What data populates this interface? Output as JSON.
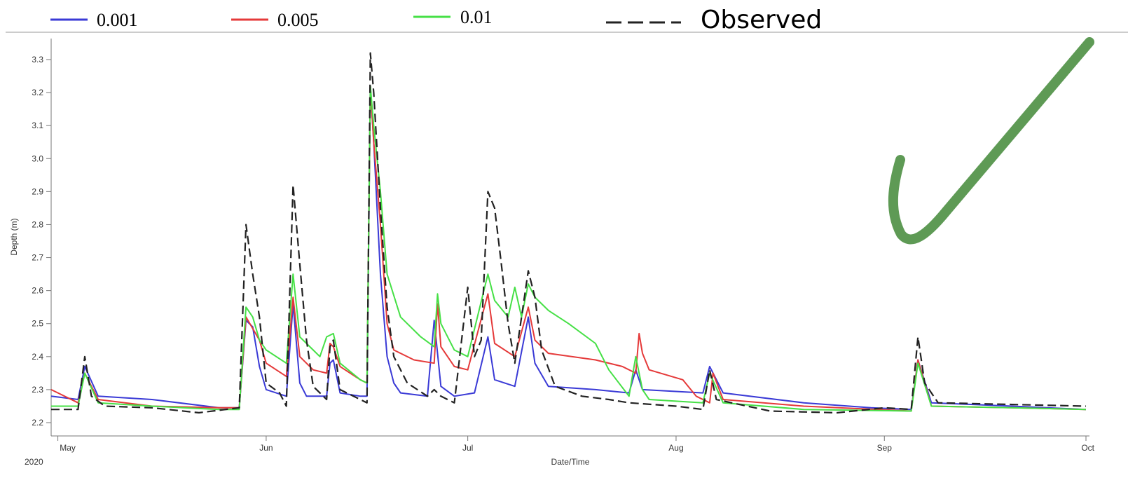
{
  "chart_data": {
    "type": "line",
    "xlabel": "Date/Time",
    "ylabel": "Depth (m)",
    "ylim": [
      2.17,
      3.36
    ],
    "xlim": [
      "2020-04-30",
      "2020-10-01"
    ],
    "y_ticks": [
      "2.2",
      "2.3",
      "2.4",
      "2.5",
      "2.6",
      "2.7",
      "2.8",
      "2.9",
      "3.0",
      "3.1",
      "3.2",
      "3.3"
    ],
    "x_ticks": [
      {
        "date": "2020-05-01",
        "label": "May"
      },
      {
        "date": "2020-06-01",
        "label": "Jun"
      },
      {
        "date": "2020-07-01",
        "label": "Jul"
      },
      {
        "date": "2020-08-01",
        "label": "Aug"
      },
      {
        "date": "2020-09-01",
        "label": "Sep"
      },
      {
        "date": "2020-10-01",
        "label": "Oct"
      }
    ],
    "year_label": "2020",
    "grid": false,
    "legend_position": "top",
    "series": [
      {
        "name": "0.001",
        "color": "#3a3ad6",
        "dash": "solid",
        "points": [
          [
            "2020-04-30",
            2.28
          ],
          [
            "2020-05-04",
            2.27
          ],
          [
            "2020-05-05",
            2.37
          ],
          [
            "2020-05-07",
            2.28
          ],
          [
            "2020-05-15",
            2.27
          ],
          [
            "2020-05-25",
            2.245
          ],
          [
            "2020-05-28",
            2.245
          ],
          [
            "2020-05-29",
            2.51
          ],
          [
            "2020-05-30",
            2.49
          ],
          [
            "2020-05-31",
            2.37
          ],
          [
            "2020-06-01",
            2.3
          ],
          [
            "2020-06-04",
            2.28
          ],
          [
            "2020-06-05",
            2.56
          ],
          [
            "2020-06-06",
            2.32
          ],
          [
            "2020-06-07",
            2.28
          ],
          [
            "2020-06-10",
            2.28
          ],
          [
            "2020-06-10T12:00",
            2.38
          ],
          [
            "2020-06-11",
            2.39
          ],
          [
            "2020-06-12",
            2.29
          ],
          [
            "2020-06-15",
            2.28
          ],
          [
            "2020-06-16",
            2.28
          ],
          [
            "2020-06-16T12:00",
            3.22
          ],
          [
            "2020-06-17",
            3.05
          ],
          [
            "2020-06-18",
            2.65
          ],
          [
            "2020-06-19",
            2.4
          ],
          [
            "2020-06-20",
            2.32
          ],
          [
            "2020-06-21",
            2.29
          ],
          [
            "2020-06-25",
            2.28
          ],
          [
            "2020-06-26",
            2.51
          ],
          [
            "2020-06-27",
            2.31
          ],
          [
            "2020-06-29",
            2.28
          ],
          [
            "2020-07-02",
            2.29
          ],
          [
            "2020-07-04",
            2.46
          ],
          [
            "2020-07-05",
            2.33
          ],
          [
            "2020-07-08",
            2.31
          ],
          [
            "2020-07-10",
            2.52
          ],
          [
            "2020-07-11",
            2.38
          ],
          [
            "2020-07-13",
            2.31
          ],
          [
            "2020-07-20",
            2.3
          ],
          [
            "2020-07-25",
            2.29
          ],
          [
            "2020-07-26",
            2.36
          ],
          [
            "2020-07-27",
            2.3
          ],
          [
            "2020-08-05",
            2.29
          ],
          [
            "2020-08-06",
            2.37
          ],
          [
            "2020-08-08",
            2.29
          ],
          [
            "2020-08-20",
            2.26
          ],
          [
            "2020-08-30",
            2.245
          ],
          [
            "2020-09-05",
            2.24
          ],
          [
            "2020-09-06",
            2.39
          ],
          [
            "2020-09-08",
            2.26
          ],
          [
            "2020-09-20",
            2.25
          ],
          [
            "2020-10-01",
            2.24
          ]
        ]
      },
      {
        "name": "0.005",
        "color": "#e53a3a",
        "dash": "solid",
        "points": [
          [
            "2020-04-30",
            2.3
          ],
          [
            "2020-05-04",
            2.26
          ],
          [
            "2020-05-05",
            2.35
          ],
          [
            "2020-05-07",
            2.27
          ],
          [
            "2020-05-15",
            2.25
          ],
          [
            "2020-05-25",
            2.245
          ],
          [
            "2020-05-28",
            2.245
          ],
          [
            "2020-05-29",
            2.52
          ],
          [
            "2020-05-31",
            2.45
          ],
          [
            "2020-06-01",
            2.38
          ],
          [
            "2020-06-04",
            2.34
          ],
          [
            "2020-06-05",
            2.58
          ],
          [
            "2020-06-06",
            2.4
          ],
          [
            "2020-06-08",
            2.36
          ],
          [
            "2020-06-10",
            2.35
          ],
          [
            "2020-06-10T12:00",
            2.44
          ],
          [
            "2020-06-11",
            2.43
          ],
          [
            "2020-06-12",
            2.37
          ],
          [
            "2020-06-15",
            2.33
          ],
          [
            "2020-06-16",
            2.32
          ],
          [
            "2020-06-16T12:00",
            3.22
          ],
          [
            "2020-06-17",
            3.05
          ],
          [
            "2020-06-18",
            2.8
          ],
          [
            "2020-06-19",
            2.5
          ],
          [
            "2020-06-20",
            2.42
          ],
          [
            "2020-06-23",
            2.39
          ],
          [
            "2020-06-26",
            2.38
          ],
          [
            "2020-06-26T12:00",
            2.56
          ],
          [
            "2020-06-27",
            2.43
          ],
          [
            "2020-06-29",
            2.37
          ],
          [
            "2020-07-01",
            2.36
          ],
          [
            "2020-07-04",
            2.59
          ],
          [
            "2020-07-05",
            2.44
          ],
          [
            "2020-07-08",
            2.4
          ],
          [
            "2020-07-10",
            2.55
          ],
          [
            "2020-07-11",
            2.45
          ],
          [
            "2020-07-13",
            2.41
          ],
          [
            "2020-07-20",
            2.39
          ],
          [
            "2020-07-24",
            2.37
          ],
          [
            "2020-07-26",
            2.35
          ],
          [
            "2020-07-26T12:00",
            2.47
          ],
          [
            "2020-07-27",
            2.41
          ],
          [
            "2020-07-28",
            2.36
          ],
          [
            "2020-08-02",
            2.33
          ],
          [
            "2020-08-04",
            2.28
          ],
          [
            "2020-08-06",
            2.26
          ],
          [
            "2020-08-06T12:00",
            2.35
          ],
          [
            "2020-08-08",
            2.27
          ],
          [
            "2020-08-20",
            2.25
          ],
          [
            "2020-09-05",
            2.235
          ],
          [
            "2020-09-06",
            2.39
          ],
          [
            "2020-09-08",
            2.25
          ],
          [
            "2020-09-20",
            2.245
          ],
          [
            "2020-10-01",
            2.24
          ]
        ]
      },
      {
        "name": "0.01",
        "color": "#46e046",
        "dash": "solid",
        "points": [
          [
            "2020-04-30",
            2.25
          ],
          [
            "2020-05-04",
            2.25
          ],
          [
            "2020-05-05",
            2.35
          ],
          [
            "2020-05-07",
            2.26
          ],
          [
            "2020-05-15",
            2.25
          ],
          [
            "2020-05-25",
            2.24
          ],
          [
            "2020-05-28",
            2.24
          ],
          [
            "2020-05-29",
            2.55
          ],
          [
            "2020-05-30",
            2.52
          ],
          [
            "2020-05-31",
            2.45
          ],
          [
            "2020-06-01",
            2.42
          ],
          [
            "2020-06-04",
            2.38
          ],
          [
            "2020-06-05",
            2.65
          ],
          [
            "2020-06-06",
            2.46
          ],
          [
            "2020-06-08",
            2.42
          ],
          [
            "2020-06-09",
            2.4
          ],
          [
            "2020-06-10",
            2.46
          ],
          [
            "2020-06-11",
            2.47
          ],
          [
            "2020-06-12",
            2.38
          ],
          [
            "2020-06-15",
            2.33
          ],
          [
            "2020-06-16",
            2.32
          ],
          [
            "2020-06-16T12:00",
            3.22
          ],
          [
            "2020-06-17",
            3.1
          ],
          [
            "2020-06-18",
            2.9
          ],
          [
            "2020-06-19",
            2.65
          ],
          [
            "2020-06-21",
            2.52
          ],
          [
            "2020-06-24",
            2.46
          ],
          [
            "2020-06-26",
            2.43
          ],
          [
            "2020-06-26T12:00",
            2.59
          ],
          [
            "2020-06-27",
            2.5
          ],
          [
            "2020-06-29",
            2.42
          ],
          [
            "2020-07-01",
            2.4
          ],
          [
            "2020-07-04",
            2.65
          ],
          [
            "2020-07-05",
            2.57
          ],
          [
            "2020-07-07",
            2.52
          ],
          [
            "2020-07-08",
            2.61
          ],
          [
            "2020-07-09",
            2.52
          ],
          [
            "2020-07-10",
            2.62
          ],
          [
            "2020-07-11",
            2.58
          ],
          [
            "2020-07-13",
            2.54
          ],
          [
            "2020-07-16",
            2.5
          ],
          [
            "2020-07-20",
            2.44
          ],
          [
            "2020-07-22",
            2.36
          ],
          [
            "2020-07-25",
            2.28
          ],
          [
            "2020-07-26",
            2.4
          ],
          [
            "2020-07-27",
            2.3
          ],
          [
            "2020-07-28",
            2.27
          ],
          [
            "2020-08-05",
            2.26
          ],
          [
            "2020-08-06",
            2.35
          ],
          [
            "2020-08-08",
            2.26
          ],
          [
            "2020-08-20",
            2.24
          ],
          [
            "2020-09-05",
            2.235
          ],
          [
            "2020-09-06",
            2.38
          ],
          [
            "2020-09-08",
            2.25
          ],
          [
            "2020-09-20",
            2.245
          ],
          [
            "2020-10-01",
            2.24
          ]
        ]
      },
      {
        "name": "Observed",
        "color": "#222222",
        "dash": "dashed",
        "points": [
          [
            "2020-04-30",
            2.24
          ],
          [
            "2020-05-04",
            2.24
          ],
          [
            "2020-05-05",
            2.4
          ],
          [
            "2020-05-06",
            2.28
          ],
          [
            "2020-05-08",
            2.25
          ],
          [
            "2020-05-15",
            2.245
          ],
          [
            "2020-05-22",
            2.23
          ],
          [
            "2020-05-28",
            2.245
          ],
          [
            "2020-05-29",
            2.8
          ],
          [
            "2020-05-30",
            2.65
          ],
          [
            "2020-05-31",
            2.52
          ],
          [
            "2020-06-01",
            2.32
          ],
          [
            "2020-06-03",
            2.29
          ],
          [
            "2020-06-04",
            2.25
          ],
          [
            "2020-06-05",
            2.92
          ],
          [
            "2020-06-06",
            2.68
          ],
          [
            "2020-06-07",
            2.45
          ],
          [
            "2020-06-08",
            2.31
          ],
          [
            "2020-06-10",
            2.27
          ],
          [
            "2020-06-10T12:00",
            2.43
          ],
          [
            "2020-06-11",
            2.45
          ],
          [
            "2020-06-12",
            2.3
          ],
          [
            "2020-06-15",
            2.27
          ],
          [
            "2020-06-16",
            2.26
          ],
          [
            "2020-06-16T12:00",
            3.32
          ],
          [
            "2020-06-17",
            3.2
          ],
          [
            "2020-06-18",
            2.85
          ],
          [
            "2020-06-19",
            2.55
          ],
          [
            "2020-06-20",
            2.4
          ],
          [
            "2020-06-22",
            2.32
          ],
          [
            "2020-06-25",
            2.28
          ],
          [
            "2020-06-26",
            2.3
          ],
          [
            "2020-06-27",
            2.28
          ],
          [
            "2020-06-29",
            2.26
          ],
          [
            "2020-07-01",
            2.61
          ],
          [
            "2020-07-02",
            2.4
          ],
          [
            "2020-07-03",
            2.45
          ],
          [
            "2020-07-04",
            2.9
          ],
          [
            "2020-07-05",
            2.85
          ],
          [
            "2020-07-06",
            2.68
          ],
          [
            "2020-07-07",
            2.5
          ],
          [
            "2020-07-08",
            2.38
          ],
          [
            "2020-07-10",
            2.66
          ],
          [
            "2020-07-11",
            2.58
          ],
          [
            "2020-07-12",
            2.42
          ],
          [
            "2020-07-14",
            2.31
          ],
          [
            "2020-07-18",
            2.28
          ],
          [
            "2020-07-22",
            2.27
          ],
          [
            "2020-07-25",
            2.26
          ],
          [
            "2020-08-01",
            2.25
          ],
          [
            "2020-08-05",
            2.24
          ],
          [
            "2020-08-06",
            2.36
          ],
          [
            "2020-08-07",
            2.27
          ],
          [
            "2020-08-15",
            2.235
          ],
          [
            "2020-08-25",
            2.23
          ],
          [
            "2020-09-01",
            2.245
          ],
          [
            "2020-09-05",
            2.24
          ],
          [
            "2020-09-06",
            2.46
          ],
          [
            "2020-09-07",
            2.32
          ],
          [
            "2020-09-09",
            2.26
          ],
          [
            "2020-09-20",
            2.255
          ],
          [
            "2020-10-01",
            2.25
          ]
        ]
      }
    ]
  },
  "legend": [
    {
      "label": "0.001",
      "color": "#3a3ad6",
      "dash": "solid"
    },
    {
      "label": "0.005",
      "color": "#e53a3a",
      "dash": "solid"
    },
    {
      "label": "0.01",
      "color": "#46e046",
      "dash": "solid"
    },
    {
      "label": "Observed",
      "color": "#222222",
      "dash": "dashed"
    }
  ],
  "checkmark": {
    "icon": "checkmark-icon",
    "color": "#5e9a55"
  }
}
